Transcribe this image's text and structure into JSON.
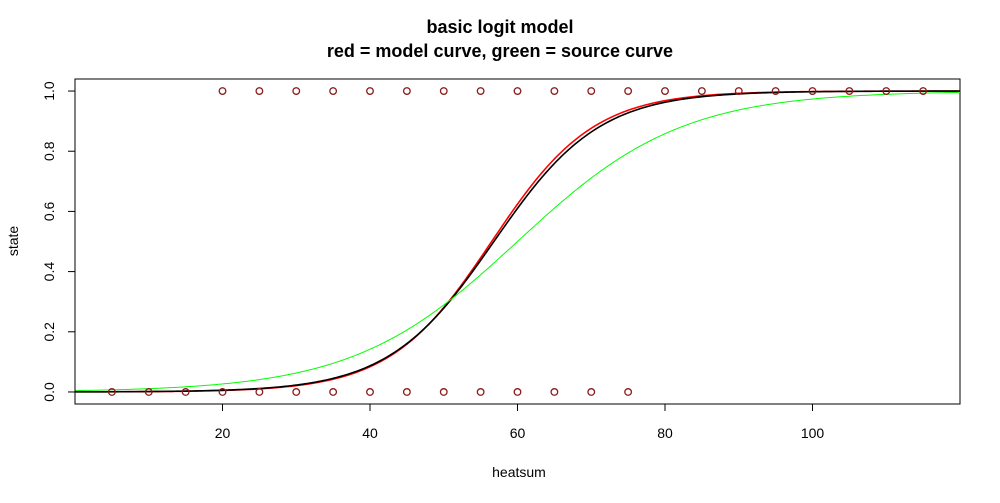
{
  "chart_data": {
    "type": "scatter",
    "title": "basic logit model",
    "subtitle": "red = model curve, green = source curve",
    "xlabel": "heatsum",
    "ylabel": "state",
    "xlim": [
      0,
      120
    ],
    "ylim": [
      -0.04,
      1.04
    ],
    "x_ticks": [
      20,
      40,
      60,
      80,
      100
    ],
    "y_ticks": [
      0.0,
      0.2,
      0.4,
      0.6,
      0.8,
      1.0
    ],
    "y_tick_labels": [
      "0.0",
      "0.2",
      "0.4",
      "0.6",
      "0.8",
      "1.0"
    ],
    "grid": false,
    "points_state_0": [
      5,
      10,
      15,
      20,
      25,
      30,
      35,
      40,
      45,
      50,
      55,
      60,
      65,
      70,
      75
    ],
    "points_state_1": [
      20,
      25,
      30,
      35,
      40,
      45,
      50,
      55,
      60,
      65,
      70,
      75,
      80,
      85,
      90,
      95,
      100,
      105,
      110,
      115
    ],
    "point_color": "#8b1a1a",
    "curves": [
      {
        "color": "#ff0000",
        "midpoint": 56.5,
        "slope": 0.145
      },
      {
        "color": "#000000",
        "midpoint": 56.8,
        "slope": 0.14
      },
      {
        "color": "#00ff00",
        "midpoint": 60.0,
        "slope": 0.09
      }
    ]
  }
}
